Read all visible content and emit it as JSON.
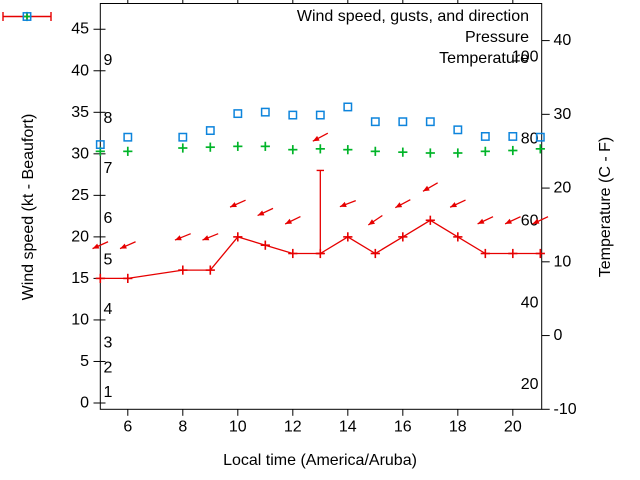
{
  "chart_data": {
    "type": "line",
    "title": "",
    "x_axis": {
      "label": "Local time (America/Aruba)",
      "range": [
        5,
        21.05
      ],
      "ticks": [
        6,
        8,
        10,
        12,
        14,
        16,
        18,
        20
      ]
    },
    "left_axis": {
      "label": "Wind speed (kt - Beaufort)",
      "range_kt": [
        -0.76,
        48.1
      ],
      "ticks_kt": [
        0,
        5,
        10,
        15,
        20,
        25,
        30,
        35,
        40,
        45
      ],
      "beaufort_labels": [
        {
          "b": "9",
          "kt": 41
        },
        {
          "b": "8",
          "kt": 34
        },
        {
          "b": "7",
          "kt": 28
        },
        {
          "b": "6",
          "kt": 22
        },
        {
          "b": "5",
          "kt": 17
        },
        {
          "b": "4",
          "kt": 11
        },
        {
          "b": "3",
          "kt": 7
        },
        {
          "b": "2",
          "kt": 4
        },
        {
          "b": "1",
          "kt": 1
        }
      ]
    },
    "right_axis": {
      "label": "Temperature (C - F)",
      "range_c": [
        -10,
        45.03
      ],
      "ticks_c": [
        -10,
        0,
        10,
        20,
        30,
        40
      ],
      "fahrenheit_labels": [
        20,
        40,
        60,
        80,
        100
      ]
    },
    "grid": false,
    "legend_position": "top-right-inside",
    "series": {
      "wind": {
        "name": "Wind speed, gusts, and direction",
        "color": "#e60000",
        "marker": "plus",
        "points": [
          {
            "t": 5,
            "kt": 15
          },
          {
            "t": 6,
            "kt": 15
          },
          {
            "t": 8,
            "kt": 16
          },
          {
            "t": 9,
            "kt": 16
          },
          {
            "t": 10,
            "kt": 20
          },
          {
            "t": 11,
            "kt": 19
          },
          {
            "t": 12,
            "kt": 18
          },
          {
            "t": 13,
            "kt": 18
          },
          {
            "t": 14,
            "kt": 20
          },
          {
            "t": 15,
            "kt": 18
          },
          {
            "t": 16,
            "kt": 20
          },
          {
            "t": 17,
            "kt": 22
          },
          {
            "t": 18,
            "kt": 20
          },
          {
            "t": 19,
            "kt": 18
          },
          {
            "t": 20,
            "kt": 18
          },
          {
            "t": 21,
            "kt": 18
          }
        ],
        "gusts": [
          {
            "t": 13,
            "kt": 28
          }
        ],
        "direction_arrows": [
          {
            "t": 5,
            "kt": 19,
            "angle": 156
          },
          {
            "t": 6,
            "kt": 19,
            "angle": 156
          },
          {
            "t": 8,
            "kt": 20,
            "angle": 158
          },
          {
            "t": 9,
            "kt": 20,
            "angle": 158
          },
          {
            "t": 10,
            "kt": 24,
            "angle": 156
          },
          {
            "t": 11,
            "kt": 23,
            "angle": 155
          },
          {
            "t": 12,
            "kt": 22,
            "angle": 154
          },
          {
            "t": 13,
            "kt": 32,
            "angle": 152
          },
          {
            "t": 14,
            "kt": 24,
            "angle": 159
          },
          {
            "t": 15,
            "kt": 22,
            "angle": 146
          },
          {
            "t": 16,
            "kt": 24,
            "angle": 152
          },
          {
            "t": 17,
            "kt": 26,
            "angle": 150
          },
          {
            "t": 18,
            "kt": 24,
            "angle": 155
          },
          {
            "t": 19,
            "kt": 22,
            "angle": 155
          },
          {
            "t": 20,
            "kt": 22,
            "angle": 155
          },
          {
            "t": 21,
            "kt": 22,
            "angle": 155
          }
        ]
      },
      "pressure": {
        "name": "Pressure",
        "color": "#00b428",
        "marker": "plus",
        "points_y_kt": [
          {
            "t": 5,
            "y": 30.3
          },
          {
            "t": 6,
            "y": 30.3
          },
          {
            "t": 8,
            "y": 30.7
          },
          {
            "t": 9,
            "y": 30.8
          },
          {
            "t": 10,
            "y": 30.9
          },
          {
            "t": 11,
            "y": 30.9
          },
          {
            "t": 12,
            "y": 30.5
          },
          {
            "t": 13,
            "y": 30.6
          },
          {
            "t": 14,
            "y": 30.5
          },
          {
            "t": 15,
            "y": 30.3
          },
          {
            "t": 16,
            "y": 30.2
          },
          {
            "t": 17,
            "y": 30.1
          },
          {
            "t": 18,
            "y": 30.1
          },
          {
            "t": 19,
            "y": 30.3
          },
          {
            "t": 20,
            "y": 30.4
          },
          {
            "t": 21,
            "y": 30.6
          }
        ]
      },
      "temperature": {
        "name": "Temperature",
        "color": "#0d84dc",
        "marker": "open-square",
        "points_c": [
          {
            "t": 5,
            "c": 25.9
          },
          {
            "t": 6,
            "c": 26.9
          },
          {
            "t": 8,
            "c": 26.9
          },
          {
            "t": 9,
            "c": 27.8
          },
          {
            "t": 10,
            "c": 30.1
          },
          {
            "t": 11,
            "c": 30.3
          },
          {
            "t": 12,
            "c": 29.9
          },
          {
            "t": 13,
            "c": 29.9
          },
          {
            "t": 14,
            "c": 31.0
          },
          {
            "t": 15,
            "c": 29.0
          },
          {
            "t": 16,
            "c": 29.0
          },
          {
            "t": 17,
            "c": 29.0
          },
          {
            "t": 18,
            "c": 27.9
          },
          {
            "t": 19,
            "c": 27.0
          },
          {
            "t": 20,
            "c": 27.0
          },
          {
            "t": 21,
            "c": 26.9
          }
        ]
      }
    },
    "colors": {
      "border": "#000000",
      "text": "#000000",
      "background": "#ffffff"
    }
  }
}
